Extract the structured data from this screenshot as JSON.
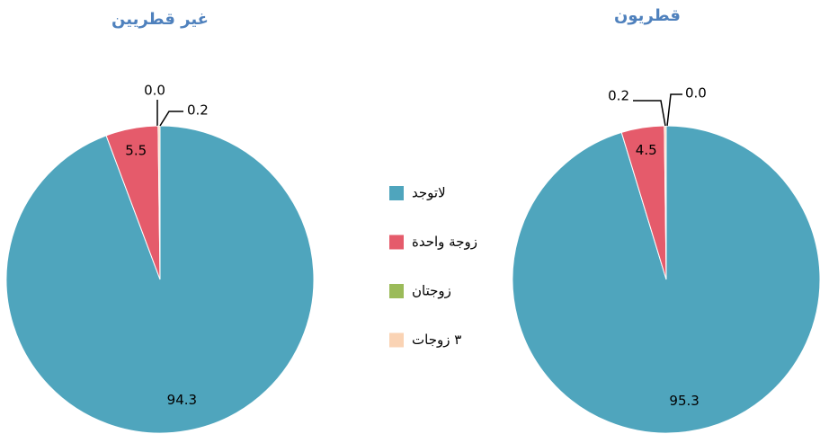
{
  "legend": {
    "categories": [
      "لاتوجد",
      "زوجة واحدة",
      "زوجتان",
      "٣ زوجات"
    ],
    "colors": [
      "#4fa5bd",
      "#e55b6b",
      "#9bbb59",
      "#fad3b4"
    ]
  },
  "chart_data": [
    {
      "type": "pie",
      "title": "غير قطريين",
      "values": [
        94.3,
        5.5,
        0,
        0.2
      ],
      "value_labels": [
        "94.3",
        "5.5",
        "0.0",
        "0.2"
      ]
    },
    {
      "type": "pie",
      "title": "قطريون",
      "values": [
        95.3,
        4.5,
        0,
        0.2
      ],
      "value_labels": [
        "95.3",
        "4.5",
        "0.0",
        "0.2"
      ]
    }
  ]
}
